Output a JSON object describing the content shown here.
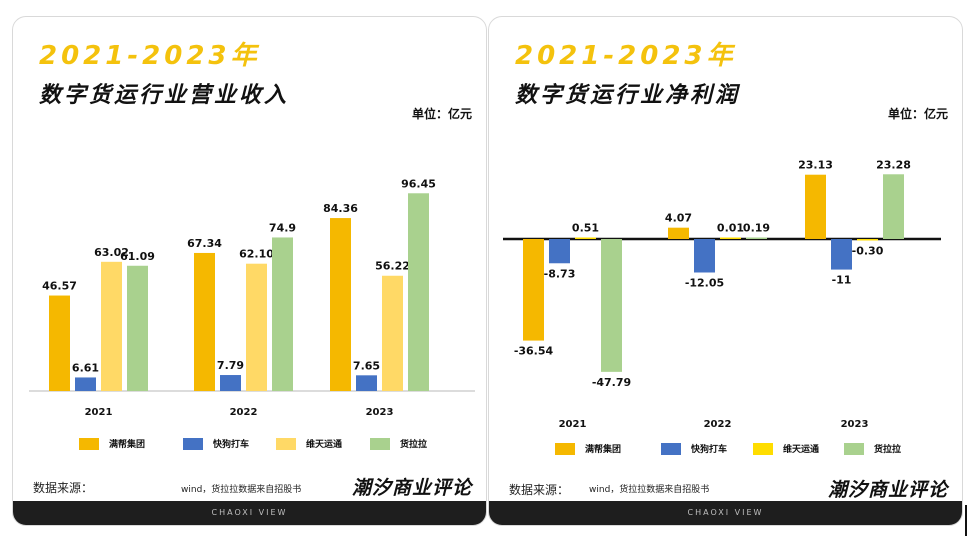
{
  "colors": {
    "accent": "#f4c20d",
    "footer_bg": "#1e1e1e",
    "series": [
      "#f5b800",
      "#4472c4",
      "#ffd966",
      "#a9d18e"
    ],
    "series_alt": [
      "#f5b800",
      "#4472c4",
      "#ffdd00",
      "#a9d18e"
    ]
  },
  "left": {
    "headline": "2021-2023年",
    "title": "数字货运行业营业收入",
    "unit": "单位：亿元",
    "legend": [
      "满帮集团",
      "快狗打车",
      "维天运通",
      "货拉拉"
    ],
    "source_label": "数据来源：",
    "source_text": "wind，货拉拉数据来自招股书",
    "brand": "潮汐商业评论",
    "footer": "CHAOXI VIEW"
  },
  "right": {
    "headline": "2021-2023年",
    "title": "数字货运行业净利润",
    "unit": "单位：亿元",
    "legend": [
      "满帮集团",
      "快狗打车",
      "维天运通",
      "货拉拉"
    ],
    "source_label": "数据来源：",
    "source_text": "wind，货拉拉数据来自招股书",
    "brand": "潮汐商业评论",
    "footer": "CHAOXI VIEW"
  },
  "chart_data": [
    {
      "type": "bar",
      "title": "数字货运行业营业收入",
      "ylabel": "单位：亿元",
      "categories": [
        "2021",
        "2022",
        "2023"
      ],
      "series": [
        {
          "name": "满帮集团",
          "values": [
            46.57,
            67.34,
            84.36
          ]
        },
        {
          "name": "快狗打车",
          "values": [
            6.61,
            7.79,
            7.65
          ]
        },
        {
          "name": "维天运通",
          "values": [
            63.02,
            62.1,
            56.22
          ]
        },
        {
          "name": "货拉拉",
          "values": [
            61.09,
            74.9,
            96.45
          ]
        }
      ],
      "value_labels": [
        [
          "46.57",
          "67.34",
          "84.36"
        ],
        [
          "6.61",
          "7.79",
          "7.65"
        ],
        [
          "63.02",
          "62.10",
          "56.22"
        ],
        [
          "61.09",
          "74.9",
          "96.45"
        ]
      ],
      "ylim": [
        0,
        100
      ],
      "grid": false,
      "legend_position": "bottom"
    },
    {
      "type": "bar",
      "title": "数字货运行业净利润",
      "ylabel": "单位：亿元",
      "categories": [
        "2021",
        "2022",
        "2023"
      ],
      "series": [
        {
          "name": "满帮集团",
          "values": [
            -36.54,
            4.07,
            23.13
          ]
        },
        {
          "name": "快狗打车",
          "values": [
            -8.73,
            -12.05,
            -11
          ]
        },
        {
          "name": "维天运通",
          "values": [
            0.51,
            0.01,
            -0.3
          ]
        },
        {
          "name": "货拉拉",
          "values": [
            -47.79,
            0.19,
            23.28
          ]
        }
      ],
      "value_labels": [
        [
          "-36.54",
          "4.07",
          "23.13"
        ],
        [
          "-8.73",
          "-12.05",
          "-11"
        ],
        [
          "0.51",
          "0.01",
          "-0.30"
        ],
        [
          "-47.79",
          "0.19",
          "23.28"
        ]
      ],
      "ylim": [
        -50,
        25
      ],
      "grid": false,
      "legend_position": "bottom"
    }
  ]
}
